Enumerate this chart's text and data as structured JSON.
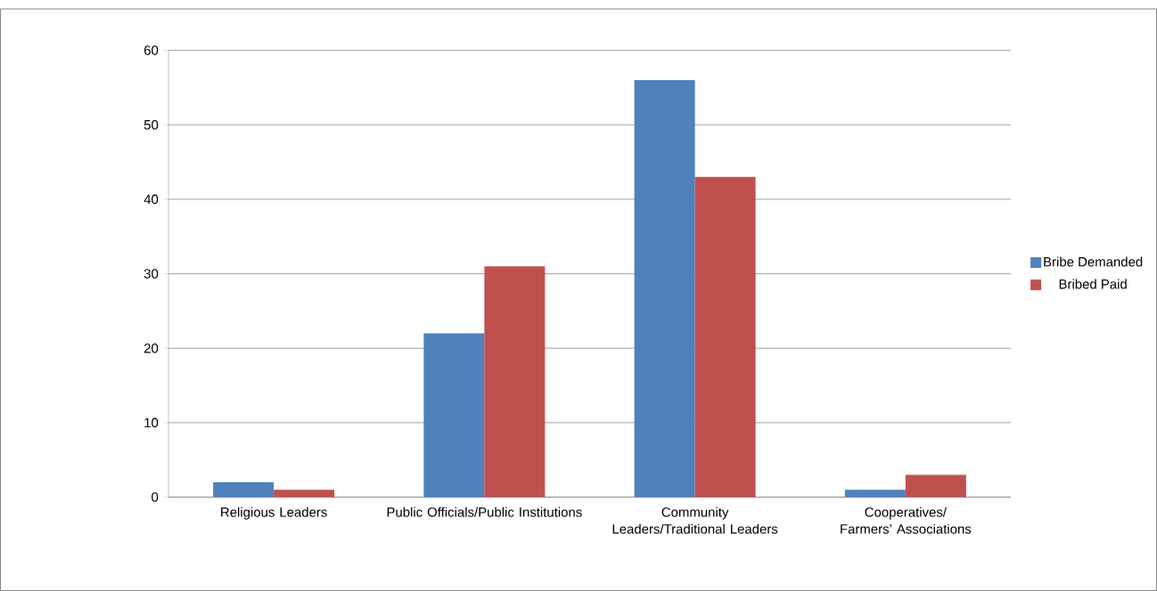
{
  "chart_data": {
    "type": "bar",
    "categories": [
      "Religious Leaders",
      "Public Officials/Public Institutions",
      "Community Leaders/Traditional Leaders",
      "Cooperatives/ Farmers’ Associations"
    ],
    "series": [
      {
        "name": "Bribe Demanded",
        "color": "#4f81bd",
        "values": [
          2,
          22,
          56,
          1
        ]
      },
      {
        "name": "Bribed Paid",
        "color": "#c0504d",
        "values": [
          1,
          31,
          43,
          3
        ]
      }
    ],
    "ylim": [
      0,
      60
    ],
    "yticks": [
      0,
      10,
      20,
      30,
      40,
      50,
      60
    ],
    "grid": "y",
    "legend": "right"
  }
}
